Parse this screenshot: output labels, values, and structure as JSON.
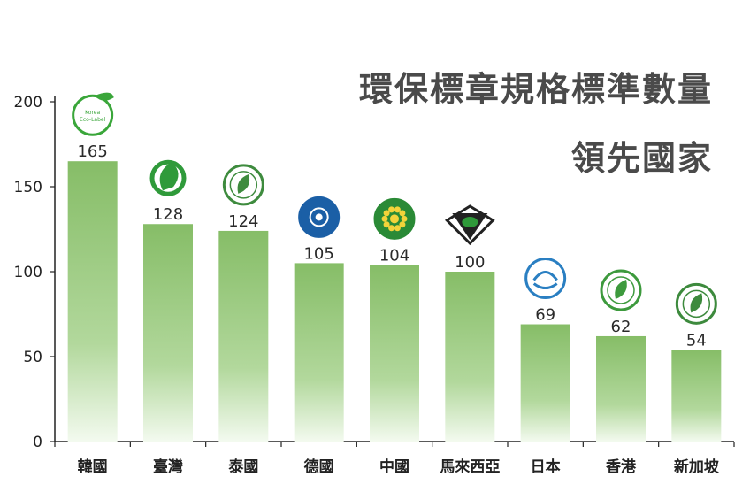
{
  "chart_data": {
    "type": "bar",
    "title": [
      "環保標章規格標準數量",
      "領先國家"
    ],
    "categories": [
      "韓國",
      "臺灣",
      "泰國",
      "德國",
      "中國",
      "馬來西亞",
      "日本",
      "香港",
      "新加坡"
    ],
    "values": [
      165,
      128,
      124,
      105,
      104,
      100,
      69,
      62,
      54
    ],
    "yticks": [
      0,
      50,
      100,
      150,
      200
    ],
    "ylim": [
      0,
      200
    ],
    "grid": false,
    "bar_color": "#8cc06e",
    "logo_labels": [
      "Korea Eco-Label",
      "",
      "",
      "BLAUER ENGEL",
      "",
      "",
      "",
      "HONG KONG Green Label",
      "Green Label SINGAPORE"
    ]
  }
}
